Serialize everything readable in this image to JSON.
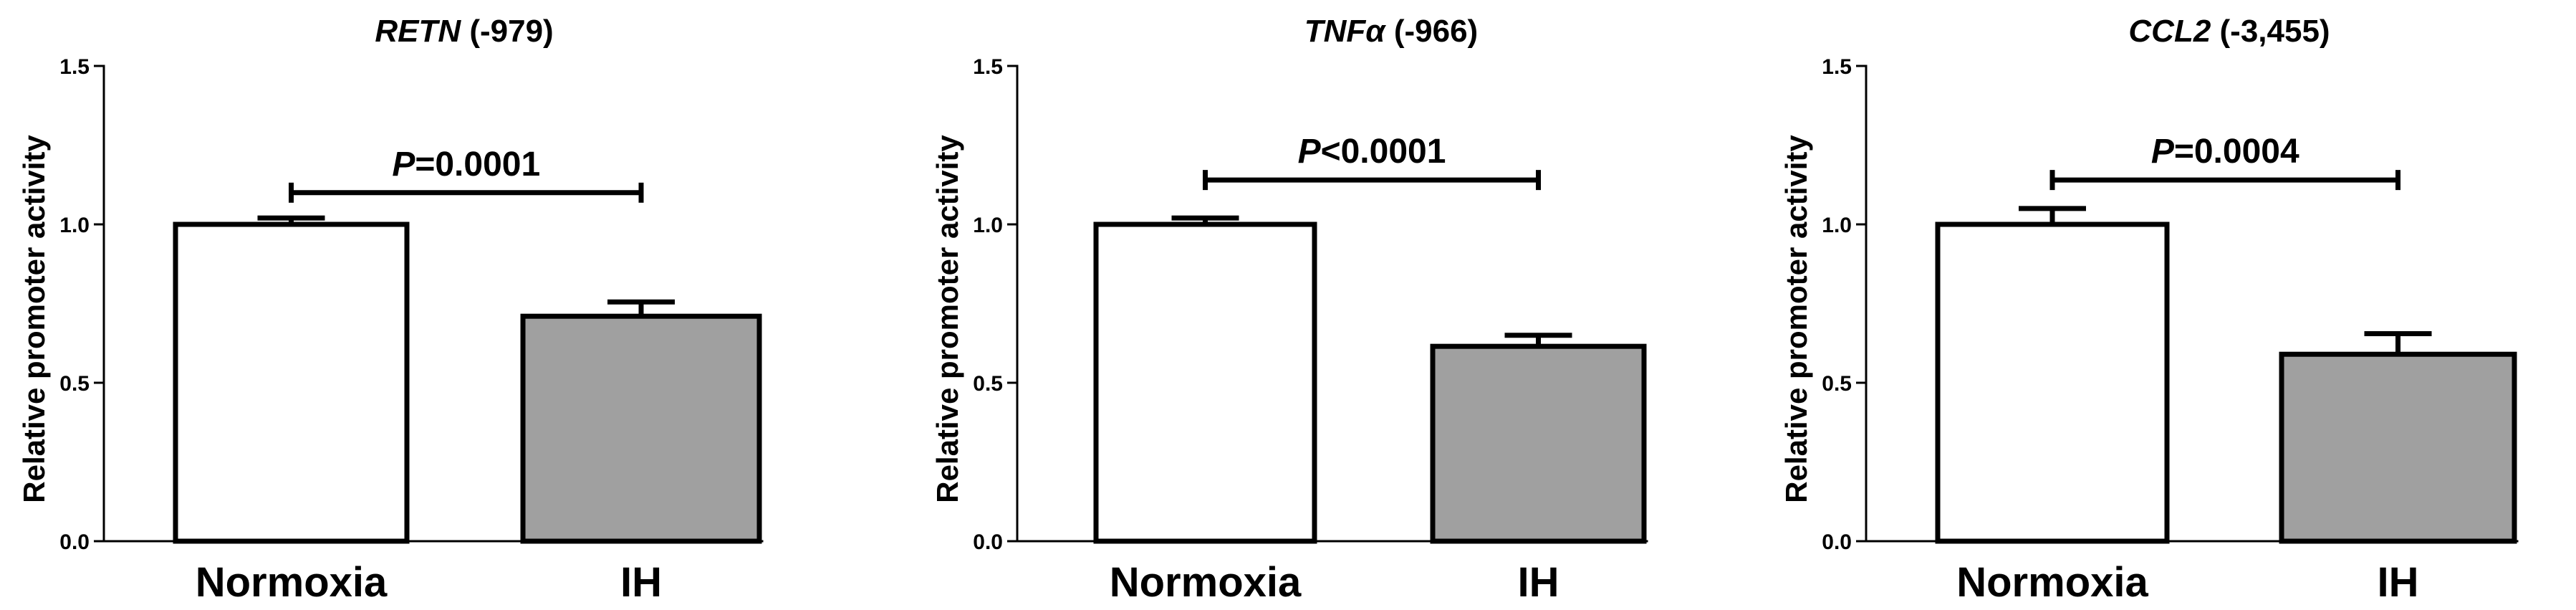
{
  "chart_data": [
    {
      "type": "bar",
      "title_gene": "RETN",
      "title_suffix": " (-979)",
      "ylabel": "Relative promoter activity",
      "categories": [
        "Normoxia",
        "IH"
      ],
      "values": [
        1.0,
        0.71
      ],
      "errors": [
        0.02,
        0.045
      ],
      "colors": [
        "#ffffff",
        "#a0a0a0"
      ],
      "ylim": [
        0,
        1.5
      ],
      "yticks": [
        "0.0",
        "0.5",
        "1.0",
        "1.5"
      ],
      "significance": {
        "p_symbol": "P",
        "p_text": "=0.0001",
        "bracket_y": 1.1
      }
    },
    {
      "type": "bar",
      "title_gene": "TNFα",
      "title_suffix": " (-966)",
      "ylabel": "Relative promoter activity",
      "categories": [
        "Normoxia",
        "IH"
      ],
      "values": [
        1.0,
        0.615
      ],
      "errors": [
        0.02,
        0.035
      ],
      "colors": [
        "#ffffff",
        "#a0a0a0"
      ],
      "ylim": [
        0,
        1.5
      ],
      "yticks": [
        "0.0",
        "0.5",
        "1.0",
        "1.5"
      ],
      "significance": {
        "p_symbol": "P",
        "p_text": "<0.0001",
        "bracket_y": 1.14
      }
    },
    {
      "type": "bar",
      "title_gene": "CCL2",
      "title_suffix": " (-3,455)",
      "ylabel": "Relative promoter activity",
      "categories": [
        "Normoxia",
        "IH"
      ],
      "values": [
        1.0,
        0.59
      ],
      "errors": [
        0.05,
        0.065
      ],
      "colors": [
        "#ffffff",
        "#a0a0a0"
      ],
      "ylim": [
        0,
        1.5
      ],
      "yticks": [
        "0.0",
        "0.5",
        "1.0",
        "1.5"
      ],
      "significance": {
        "p_symbol": "P",
        "p_text": "=0.0004",
        "bracket_y": 1.14
      }
    }
  ]
}
